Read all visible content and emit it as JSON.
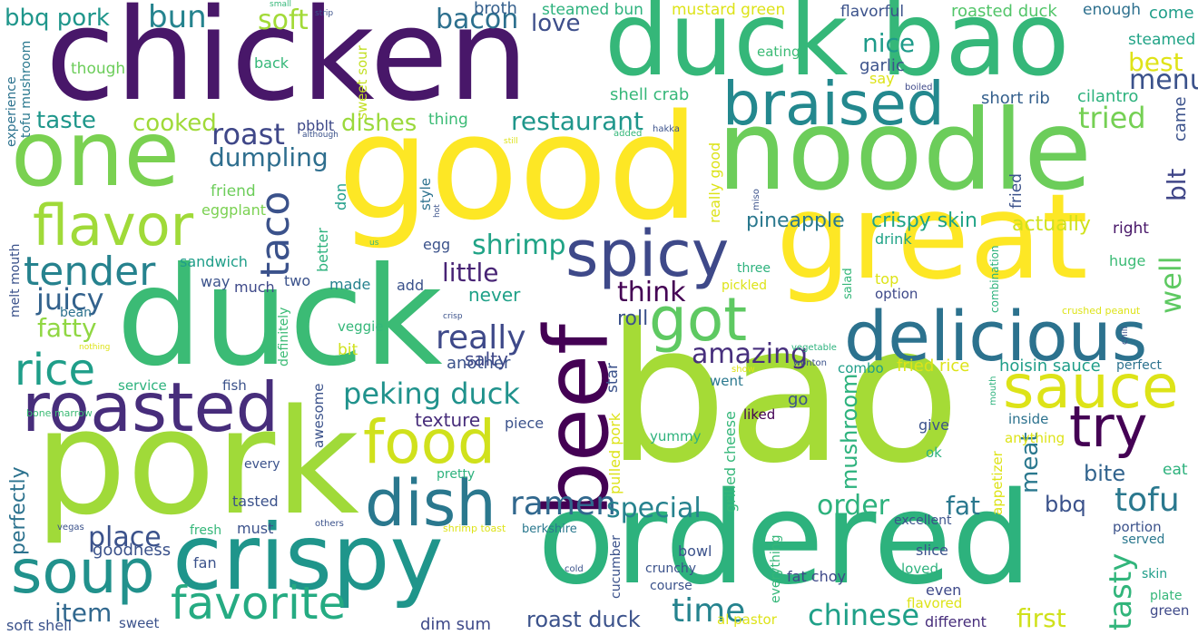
{
  "word_cloud": {
    "background": "#ffffff",
    "words": [
      {
        "text": "bao",
        "color": "#a5db36"
      },
      {
        "text": "good",
        "color": "#fde725"
      },
      {
        "text": "chicken",
        "color": "#481769"
      },
      {
        "text": "duck",
        "color": "#3bbb75"
      },
      {
        "text": "pork",
        "color": "#a0da39"
      },
      {
        "text": "noodle",
        "color": "#6ccd5a"
      },
      {
        "text": "great",
        "color": "#fde725"
      },
      {
        "text": "ordered",
        "color": "#2db27d"
      },
      {
        "text": "duck bao",
        "color": "#35b779"
      },
      {
        "text": "one",
        "color": "#7ad151"
      },
      {
        "text": "crispy",
        "color": "#1f958b"
      },
      {
        "text": "beef",
        "color": "#440154"
      },
      {
        "text": "delicious",
        "color": "#2c728e"
      },
      {
        "text": "roasted",
        "color": "#472d7b"
      },
      {
        "text": "braised",
        "color": "#23888e"
      },
      {
        "text": "spicy",
        "color": "#3e4989"
      },
      {
        "text": "flavor",
        "color": "#a0da39"
      },
      {
        "text": "sauce",
        "color": "#dde318"
      },
      {
        "text": "food",
        "color": "#d0e11c"
      },
      {
        "text": "dish",
        "color": "#2a788e"
      },
      {
        "text": "soup",
        "color": "#21918c"
      },
      {
        "text": "favorite",
        "color": "#25ab82"
      },
      {
        "text": "got",
        "color": "#5ec962"
      },
      {
        "text": "try",
        "color": "#440154"
      },
      {
        "text": "taco",
        "color": "#3b528b"
      },
      {
        "text": "tender",
        "color": "#26828e"
      },
      {
        "text": "rice",
        "color": "#1f9e89"
      },
      {
        "text": "peking duck",
        "color": "#20928c"
      },
      {
        "text": "ramen",
        "color": "#31688e"
      },
      {
        "text": "tofu",
        "color": "#2a788e"
      },
      {
        "text": "order",
        "color": "#2db27d"
      },
      {
        "text": "chinese",
        "color": "#1fa088"
      },
      {
        "text": "time",
        "color": "#25838e"
      },
      {
        "text": "first",
        "color": "#d0e11c"
      },
      {
        "text": "tasty",
        "color": "#31b57b"
      },
      {
        "text": "bun",
        "color": "#25838e"
      },
      {
        "text": "soft",
        "color": "#a2da37"
      },
      {
        "text": "bacon",
        "color": "#2d708e"
      },
      {
        "text": "love",
        "color": "#3d4e8a"
      },
      {
        "text": "nice",
        "color": "#1e9b8a"
      },
      {
        "text": "best",
        "color": "#dfe318"
      },
      {
        "text": "menu",
        "color": "#3b528b"
      },
      {
        "text": "tried",
        "color": "#75d054"
      },
      {
        "text": "restaurant",
        "color": "#1f968b"
      },
      {
        "text": "roast",
        "color": "#3f4788"
      },
      {
        "text": "dumpling",
        "color": "#2e6e8e"
      },
      {
        "text": "taste",
        "color": "#1f978b"
      },
      {
        "text": "cooked",
        "color": "#a0da39"
      },
      {
        "text": "dishes",
        "color": "#9bd93c"
      },
      {
        "text": "juicy",
        "color": "#33628d"
      },
      {
        "text": "fatty",
        "color": "#90d743"
      },
      {
        "text": "really",
        "color": "#3e4989"
      },
      {
        "text": "little",
        "color": "#482475"
      },
      {
        "text": "think",
        "color": "#440154"
      },
      {
        "text": "shrimp",
        "color": "#20a386"
      },
      {
        "text": "amazing",
        "color": "#472f7d"
      },
      {
        "text": "well",
        "color": "#5ec962"
      },
      {
        "text": "blt",
        "color": "#404688"
      },
      {
        "text": "meat",
        "color": "#2a788e"
      },
      {
        "text": "mushroom",
        "color": "#2db27d"
      },
      {
        "text": "special",
        "color": "#26828e"
      },
      {
        "text": "place",
        "color": "#3b528b"
      },
      {
        "text": "item",
        "color": "#31688e"
      },
      {
        "text": "bbq pork",
        "color": "#1f968b"
      },
      {
        "text": "crispy skin",
        "color": "#20a386"
      },
      {
        "text": "pineapple",
        "color": "#2a788e"
      },
      {
        "text": "actually",
        "color": "#d0e11c"
      },
      {
        "text": "fat",
        "color": "#2a788e"
      },
      {
        "text": "bbq",
        "color": "#3b528b"
      },
      {
        "text": "bite",
        "color": "#32648e"
      },
      {
        "text": "roll",
        "color": "#3b528b"
      },
      {
        "text": "texture",
        "color": "#472d7b"
      },
      {
        "text": "salty",
        "color": "#3f4788"
      },
      {
        "text": "never",
        "color": "#1fa188"
      },
      {
        "text": "another",
        "color": "#3b528b"
      },
      {
        "text": "hoisin sauce",
        "color": "#1f9e89"
      },
      {
        "text": "fried rice",
        "color": "#dde318"
      },
      {
        "text": "roast duck",
        "color": "#3b528b"
      },
      {
        "text": "dim sum",
        "color": "#3e4989"
      },
      {
        "text": "perfectly",
        "color": "#2c728e"
      },
      {
        "text": "goodness",
        "color": "#3b528b"
      },
      {
        "text": "broth",
        "color": "#35608d"
      },
      {
        "text": "steamed bun",
        "color": "#2db27d"
      },
      {
        "text": "mustard green",
        "color": "#dde318"
      },
      {
        "text": "flavorful",
        "color": "#3b528b"
      },
      {
        "text": "roasted duck",
        "color": "#52c569"
      },
      {
        "text": "enough",
        "color": "#2d708e"
      },
      {
        "text": "come",
        "color": "#1f9e89"
      },
      {
        "text": "steamed",
        "color": "#20a386"
      },
      {
        "text": "eating",
        "color": "#3bbb75"
      },
      {
        "text": "garlic",
        "color": "#3b528b"
      },
      {
        "text": "say",
        "color": "#dde318"
      },
      {
        "text": "shell crab",
        "color": "#35b779"
      },
      {
        "text": "short rib",
        "color": "#35608d"
      },
      {
        "text": "cilantro",
        "color": "#2db27d"
      },
      {
        "text": "came",
        "color": "#3b528b"
      },
      {
        "text": "thing",
        "color": "#3bbb75"
      },
      {
        "text": "pbblt",
        "color": "#3e4989"
      },
      {
        "text": "though",
        "color": "#6ccd5a"
      },
      {
        "text": "back",
        "color": "#35b779"
      },
      {
        "text": "experience",
        "color": "#2c728e"
      },
      {
        "text": "tofu mushroom",
        "color": "#2a788e"
      },
      {
        "text": "sweet sour",
        "color": "#c2df23"
      },
      {
        "text": "friend",
        "color": "#6ccd5a"
      },
      {
        "text": "eggplant",
        "color": "#7ad151"
      },
      {
        "text": "style",
        "color": "#2c728e"
      },
      {
        "text": "don",
        "color": "#1f9e89"
      },
      {
        "text": "really good",
        "color": "#dde318"
      },
      {
        "text": "fried",
        "color": "#3b528b"
      },
      {
        "text": "drink",
        "color": "#20a386"
      },
      {
        "text": "top",
        "color": "#dde318"
      },
      {
        "text": "option",
        "color": "#3e4989"
      },
      {
        "text": "right",
        "color": "#481769"
      },
      {
        "text": "huge",
        "color": "#3bbb75"
      },
      {
        "text": "sandwich",
        "color": "#1f9e89"
      },
      {
        "text": "way",
        "color": "#3b528b"
      },
      {
        "text": "much",
        "color": "#3e4989"
      },
      {
        "text": "two",
        "color": "#3b528b"
      },
      {
        "text": "made",
        "color": "#26828e"
      },
      {
        "text": "add",
        "color": "#3b528b"
      },
      {
        "text": "egg",
        "color": "#3b528b"
      },
      {
        "text": "better",
        "color": "#2db27d"
      },
      {
        "text": "melt mouth",
        "color": "#3b528b"
      },
      {
        "text": "bean",
        "color": "#2c728e"
      },
      {
        "text": "veggie",
        "color": "#35b779"
      },
      {
        "text": "bit",
        "color": "#d0e11c"
      },
      {
        "text": "definitely",
        "color": "#3bbb75"
      },
      {
        "text": "service",
        "color": "#2db27d"
      },
      {
        "text": "fish",
        "color": "#3b528b"
      },
      {
        "text": "awesome",
        "color": "#3b528b"
      },
      {
        "text": "star",
        "color": "#3b528b"
      },
      {
        "text": "pulled pork",
        "color": "#dde318"
      },
      {
        "text": "piece",
        "color": "#3b528b"
      },
      {
        "text": "go",
        "color": "#3b528b"
      },
      {
        "text": "liked",
        "color": "#440154"
      },
      {
        "text": "went",
        "color": "#2a788e"
      },
      {
        "text": "combo",
        "color": "#1f9e89"
      },
      {
        "text": "perfect",
        "color": "#2c728e"
      },
      {
        "text": "inside",
        "color": "#2c728e"
      },
      {
        "text": "anything",
        "color": "#dde318"
      },
      {
        "text": "eat",
        "color": "#2db27d"
      },
      {
        "text": "give",
        "color": "#3b528b"
      },
      {
        "text": "ok",
        "color": "#2db27d"
      },
      {
        "text": "yummy",
        "color": "#2db27d"
      },
      {
        "text": "grilled cheese",
        "color": "#35b779"
      },
      {
        "text": "appetizer",
        "color": "#dde318"
      },
      {
        "text": "three",
        "color": "#2db27d"
      },
      {
        "text": "pickled",
        "color": "#dde318"
      },
      {
        "text": "salad",
        "color": "#35b779"
      },
      {
        "text": "combination",
        "color": "#2db27d"
      },
      {
        "text": "crushed peanut",
        "color": "#dde318"
      },
      {
        "text": "chili",
        "color": "#3b528b"
      },
      {
        "text": "vegetable",
        "color": "#2db27d"
      },
      {
        "text": "wonton",
        "color": "#3b528b"
      },
      {
        "text": "mouth",
        "color": "#2db27d"
      },
      {
        "text": "show",
        "color": "#dde318"
      },
      {
        "text": "bone marrow",
        "color": "#3bbb75"
      },
      {
        "text": "every",
        "color": "#3b528b"
      },
      {
        "text": "pretty",
        "color": "#2db27d"
      },
      {
        "text": "tasted",
        "color": "#3b528b"
      },
      {
        "text": "fresh",
        "color": "#35b779"
      },
      {
        "text": "must",
        "color": "#3b528b"
      },
      {
        "text": "shrimp toast",
        "color": "#dde318"
      },
      {
        "text": "berkshire",
        "color": "#2a788e"
      },
      {
        "text": "others",
        "color": "#3b528b"
      },
      {
        "text": "vegas",
        "color": "#3b528b"
      },
      {
        "text": "excellent",
        "color": "#3b528b"
      },
      {
        "text": "portion",
        "color": "#3b528b"
      },
      {
        "text": "served",
        "color": "#2a788e"
      },
      {
        "text": "slice",
        "color": "#3b528b"
      },
      {
        "text": "loved",
        "color": "#2db27d"
      },
      {
        "text": "even",
        "color": "#3e4989"
      },
      {
        "text": "flavored",
        "color": "#dde318"
      },
      {
        "text": "skin",
        "color": "#1f9e89"
      },
      {
        "text": "plate",
        "color": "#35b779"
      },
      {
        "text": "green",
        "color": "#3e4989"
      },
      {
        "text": "different",
        "color": "#472d7b"
      },
      {
        "text": "fat choy",
        "color": "#3e4989"
      },
      {
        "text": "al pastor",
        "color": "#dde318"
      },
      {
        "text": "everything",
        "color": "#35b779"
      },
      {
        "text": "cucumber",
        "color": "#3b528b"
      },
      {
        "text": "crunchy",
        "color": "#3b528b"
      },
      {
        "text": "bowl",
        "color": "#3b528b"
      },
      {
        "text": "course",
        "color": "#3b528b"
      },
      {
        "text": "cold",
        "color": "#3b528b"
      },
      {
        "text": "fan",
        "color": "#3b528b"
      },
      {
        "text": "sweet",
        "color": "#3b528b"
      },
      {
        "text": "soft shell",
        "color": "#3b528b"
      },
      {
        "text": "small",
        "color": "#35b779"
      },
      {
        "text": "strip",
        "color": "#3b528b"
      },
      {
        "text": "hakka",
        "color": "#3b528b"
      },
      {
        "text": "added",
        "color": "#35b779"
      },
      {
        "text": "boiled",
        "color": "#3e4989"
      },
      {
        "text": "although",
        "color": "#3b528b"
      },
      {
        "text": "still",
        "color": "#dde318"
      },
      {
        "text": "hot",
        "color": "#3b528b"
      },
      {
        "text": "us",
        "color": "#35b779"
      },
      {
        "text": "miso",
        "color": "#3b528b"
      },
      {
        "text": "crisp",
        "color": "#3b528b"
      },
      {
        "text": "nothing",
        "color": "#dde318"
      }
    ]
  }
}
